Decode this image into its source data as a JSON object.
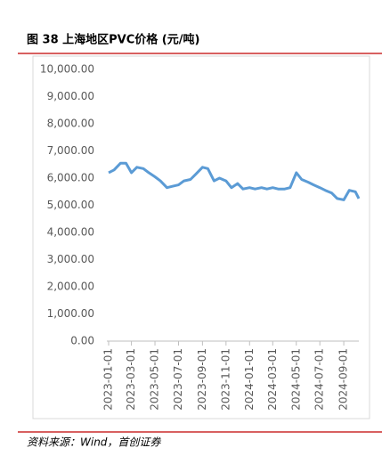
{
  "chart_data": {
    "type": "line",
    "title": "图 38 上海地区PVC价格 (元/吨)",
    "source": "资料来源：Wind，首创证券",
    "x": [
      "2023-01-01",
      "2023-01-15",
      "2023-02-01",
      "2023-02-15",
      "2023-03-01",
      "2023-03-15",
      "2023-04-01",
      "2023-04-15",
      "2023-05-01",
      "2023-05-15",
      "2023-06-01",
      "2023-06-15",
      "2023-07-01",
      "2023-07-15",
      "2023-08-01",
      "2023-08-15",
      "2023-09-01",
      "2023-09-15",
      "2023-10-01",
      "2023-10-15",
      "2023-11-01",
      "2023-11-15",
      "2023-12-01",
      "2023-12-15",
      "2024-01-01",
      "2024-01-15",
      "2024-02-01",
      "2024-02-15",
      "2024-03-01",
      "2024-03-15",
      "2024-04-01",
      "2024-04-15",
      "2024-05-01",
      "2024-05-15",
      "2024-06-01",
      "2024-06-15",
      "2024-07-01",
      "2024-07-15",
      "2024-08-01",
      "2024-08-15",
      "2024-09-01",
      "2024-09-15",
      "2024-10-01",
      "2024-10-10"
    ],
    "series": [
      {
        "name": "上海地区PVC价格",
        "color": "#5b9bd5",
        "values": [
          6200,
          6300,
          6550,
          6550,
          6200,
          6400,
          6350,
          6200,
          6050,
          5900,
          5650,
          5700,
          5750,
          5900,
          5950,
          6150,
          6400,
          6350,
          5900,
          6000,
          5900,
          5650,
          5800,
          5600,
          5650,
          5600,
          5650,
          5600,
          5650,
          5600,
          5600,
          5650,
          6200,
          5950,
          5850,
          5750,
          5650,
          5550,
          5450,
          5250,
          5200,
          5550,
          5500,
          5250
        ]
      }
    ],
    "xlim": [
      "2023-01-01",
      "2024-10-10"
    ],
    "xticks": [
      "2023-01-01",
      "2023-03-01",
      "2023-05-01",
      "2023-07-01",
      "2023-09-01",
      "2023-11-01",
      "2024-01-01",
      "2024-03-01",
      "2024-05-01",
      "2024-07-01",
      "2024-09-01"
    ],
    "ylim": [
      0,
      10000
    ],
    "yticks": [
      {
        "value": 0,
        "label": "0.00"
      },
      {
        "value": 1000,
        "label": "1,000.00"
      },
      {
        "value": 2000,
        "label": "2,000.00"
      },
      {
        "value": 3000,
        "label": "3,000.00"
      },
      {
        "value": 4000,
        "label": "4,000.00"
      },
      {
        "value": 5000,
        "label": "5,000.00"
      },
      {
        "value": 6000,
        "label": "6,000.00"
      },
      {
        "value": 7000,
        "label": "7,000.00"
      },
      {
        "value": 8000,
        "label": "8,000.00"
      },
      {
        "value": 9000,
        "label": "9,000.00"
      },
      {
        "value": 10000,
        "label": "10,000.00"
      }
    ]
  }
}
